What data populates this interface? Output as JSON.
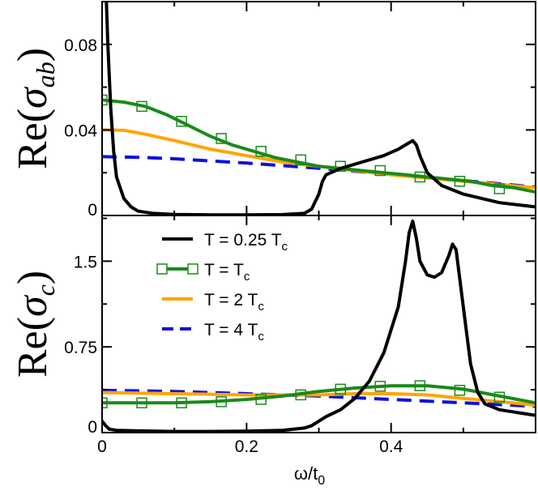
{
  "chart_data": [
    {
      "type": "line",
      "panel": "top",
      "ylabel": "Re(σ_ab)",
      "ylabel_parts": {
        "base": "Re",
        "symbol": "σ",
        "sub": "ab"
      },
      "xlim": [
        0,
        0.6
      ],
      "ylim": [
        0,
        0.1
      ],
      "yticks": [
        "0",
        "0.04",
        "0.08"
      ],
      "ytick_values": [
        0,
        0.04,
        0.08
      ],
      "series": [
        {
          "name": "T = 0.25 Tc",
          "color": "#000000",
          "style": "solid",
          "x": [
            0.006,
            0.008,
            0.012,
            0.016,
            0.02,
            0.03,
            0.04,
            0.05,
            0.07,
            0.1,
            0.15,
            0.2,
            0.25,
            0.28,
            0.29,
            0.3,
            0.305,
            0.31,
            0.33,
            0.36,
            0.39,
            0.41,
            0.42,
            0.43,
            0.435,
            0.44,
            0.45,
            0.47,
            0.5,
            0.55,
            0.6
          ],
          "y": [
            0.1,
            0.08,
            0.05,
            0.03,
            0.018,
            0.008,
            0.004,
            0.002,
            0.001,
            0.0005,
            0.0003,
            0.0003,
            0.0004,
            0.001,
            0.003,
            0.01,
            0.016,
            0.019,
            0.022,
            0.025,
            0.028,
            0.031,
            0.033,
            0.035,
            0.033,
            0.028,
            0.02,
            0.014,
            0.01,
            0.006,
            0.004
          ]
        },
        {
          "name": "T = Tc",
          "color": "#1a8a1a",
          "style": "solid",
          "markers": true,
          "x": [
            0,
            0.03,
            0.06,
            0.09,
            0.12,
            0.15,
            0.18,
            0.21,
            0.24,
            0.27,
            0.3,
            0.33,
            0.36,
            0.39,
            0.42,
            0.45,
            0.48,
            0.51,
            0.54,
            0.57,
            0.6
          ],
          "y": [
            0.054,
            0.053,
            0.051,
            0.047,
            0.042,
            0.037,
            0.033,
            0.03,
            0.027,
            0.025,
            0.023,
            0.022,
            0.021,
            0.02,
            0.019,
            0.018,
            0.017,
            0.016,
            0.014,
            0.013,
            0.011
          ],
          "marker_x": [
            0,
            0.055,
            0.11,
            0.165,
            0.22,
            0.275,
            0.33,
            0.385,
            0.44,
            0.495,
            0.55
          ],
          "marker_y": [
            0.054,
            0.051,
            0.044,
            0.036,
            0.03,
            0.026,
            0.023,
            0.021,
            0.018,
            0.016,
            0.0125
          ]
        },
        {
          "name": "T = 2 Tc",
          "color": "#ffa500",
          "style": "solid",
          "x": [
            0,
            0.03,
            0.06,
            0.1,
            0.15,
            0.2,
            0.25,
            0.3,
            0.35,
            0.4,
            0.45,
            0.5,
            0.55,
            0.6
          ],
          "y": [
            0.04,
            0.0398,
            0.038,
            0.035,
            0.031,
            0.028,
            0.025,
            0.023,
            0.021,
            0.019,
            0.0175,
            0.016,
            0.0145,
            0.013
          ]
        },
        {
          "name": "T = 4 Tc",
          "color": "#1010e0",
          "style": "dashed",
          "x": [
            0,
            0.05,
            0.1,
            0.15,
            0.2,
            0.25,
            0.3,
            0.35,
            0.4,
            0.45,
            0.5,
            0.55,
            0.6
          ],
          "y": [
            0.0275,
            0.0272,
            0.0265,
            0.0255,
            0.0245,
            0.0233,
            0.0221,
            0.0207,
            0.0193,
            0.0178,
            0.0163,
            0.0148,
            0.0133
          ]
        }
      ]
    },
    {
      "type": "line",
      "panel": "bottom",
      "xlabel": "ω/t0",
      "xlabel_parts": {
        "base": "ω/t",
        "sub": "0"
      },
      "ylabel": "Re(σ_c)",
      "ylabel_parts": {
        "base": "Re",
        "symbol": "σ",
        "sub": "c"
      },
      "xlim": [
        0,
        0.6
      ],
      "ylim": [
        0,
        1.9
      ],
      "xticks": [
        "0",
        "0.2",
        "0.4"
      ],
      "xtick_values": [
        0,
        0.2,
        0.4
      ],
      "yticks": [
        "0",
        "0.75",
        "1.5"
      ],
      "ytick_values": [
        0,
        0.75,
        1.5
      ],
      "series": [
        {
          "name": "T = 0.25 Tc",
          "color": "#000000",
          "style": "solid",
          "x": [
            0,
            0.005,
            0.01,
            0.02,
            0.05,
            0.1,
            0.15,
            0.2,
            0.25,
            0.28,
            0.29,
            0.3,
            0.31,
            0.33,
            0.35,
            0.37,
            0.39,
            0.41,
            0.42,
            0.425,
            0.43,
            0.435,
            0.44,
            0.45,
            0.46,
            0.47,
            0.48,
            0.485,
            0.49,
            0.5,
            0.51,
            0.52,
            0.53,
            0.55,
            0.58,
            0.6
          ],
          "y": [
            0.1,
            0.06,
            0.03,
            0.02,
            0.015,
            0.01,
            0.01,
            0.012,
            0.02,
            0.04,
            0.06,
            0.1,
            0.14,
            0.2,
            0.3,
            0.45,
            0.7,
            1.1,
            1.5,
            1.75,
            1.85,
            1.7,
            1.5,
            1.38,
            1.36,
            1.4,
            1.55,
            1.65,
            1.6,
            1.1,
            0.6,
            0.35,
            0.25,
            0.2,
            0.17,
            0.15
          ]
        },
        {
          "name": "T = Tc",
          "color": "#1a8a1a",
          "style": "solid",
          "markers": true,
          "x": [
            0,
            0.05,
            0.1,
            0.15,
            0.2,
            0.25,
            0.3,
            0.35,
            0.4,
            0.45,
            0.5,
            0.55,
            0.6
          ],
          "y": [
            0.26,
            0.26,
            0.26,
            0.27,
            0.29,
            0.32,
            0.36,
            0.39,
            0.41,
            0.41,
            0.38,
            0.32,
            0.26
          ],
          "marker_x": [
            0,
            0.055,
            0.11,
            0.165,
            0.22,
            0.275,
            0.33,
            0.385,
            0.44,
            0.495,
            0.55
          ],
          "marker_y": [
            0.26,
            0.26,
            0.26,
            0.27,
            0.29,
            0.33,
            0.38,
            0.405,
            0.41,
            0.37,
            0.31
          ]
        },
        {
          "name": "T = 2 Tc",
          "color": "#ffa500",
          "style": "solid",
          "x": [
            0,
            0.1,
            0.2,
            0.25,
            0.3,
            0.35,
            0.4,
            0.45,
            0.5,
            0.55,
            0.6
          ],
          "y": [
            0.35,
            0.34,
            0.33,
            0.33,
            0.33,
            0.34,
            0.34,
            0.33,
            0.3,
            0.27,
            0.24
          ]
        },
        {
          "name": "T = 4 Tc",
          "color": "#1010e0",
          "style": "dashed",
          "x": [
            0,
            0.1,
            0.2,
            0.3,
            0.4,
            0.5,
            0.6
          ],
          "y": [
            0.37,
            0.36,
            0.34,
            0.32,
            0.29,
            0.26,
            0.23
          ]
        }
      ]
    }
  ],
  "legend": {
    "placement": "inside bottom panel, upper left",
    "entries": [
      {
        "text": "T = 0.25 T",
        "sub": "c",
        "color": "#000000",
        "style": "solid",
        "marker": false
      },
      {
        "text": "T = T",
        "sub": "c",
        "color": "#1a8a1a",
        "style": "solid",
        "marker": true
      },
      {
        "text": "T = 2 T",
        "sub": "c",
        "color": "#ffa500",
        "style": "solid",
        "marker": false
      },
      {
        "text": "T = 4 T",
        "sub": "c",
        "color": "#1010e0",
        "style": "dashed",
        "marker": false
      }
    ]
  }
}
